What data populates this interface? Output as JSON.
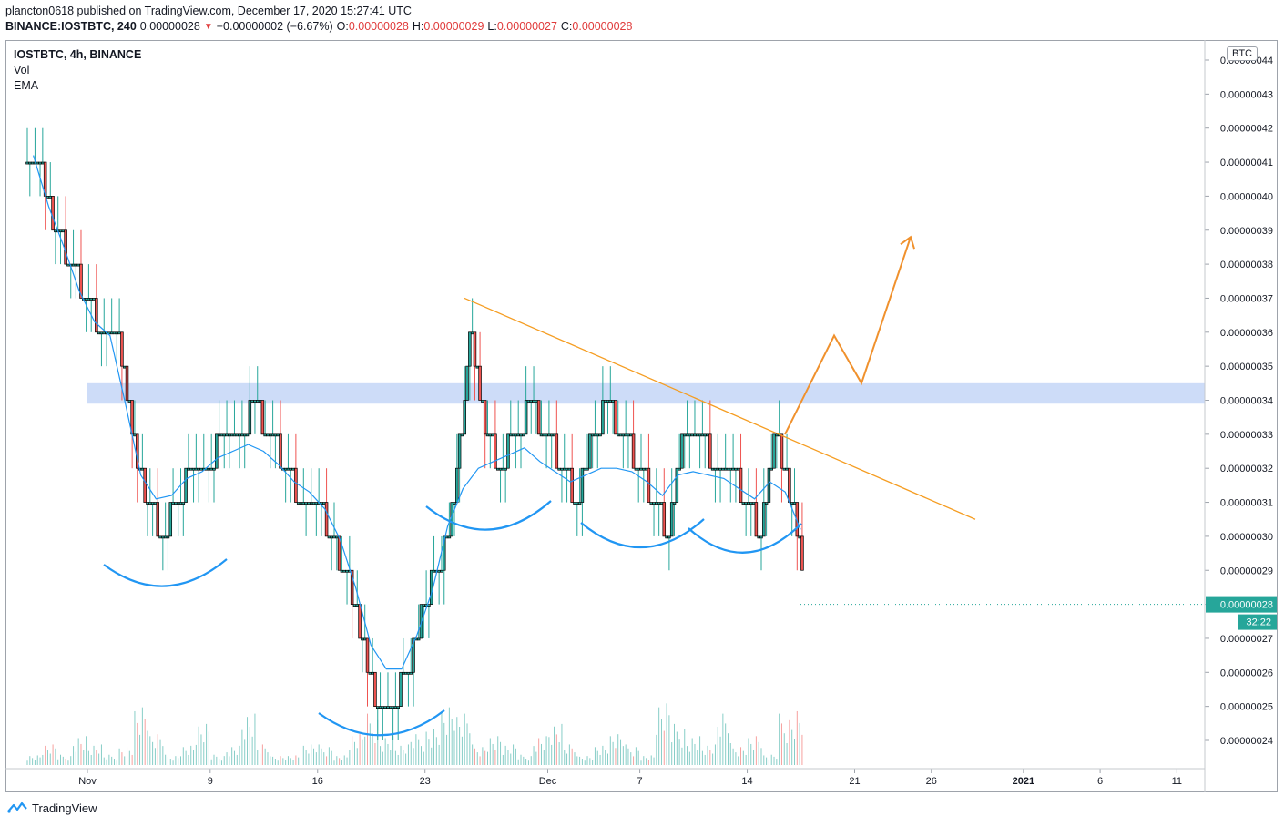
{
  "header": {
    "published_line": "plancton0618 published on TradingView.com, December 17, 2020 15:27:41 UTC",
    "symbol": "BINANCE:IOSTBTC, 240",
    "last": "0.00000028",
    "change_arrow": "▼",
    "change": "−0.00000002 (−6.67%)",
    "o_label": "O:",
    "o_value": "0.00000028",
    "h_label": "H:",
    "h_value": "0.00000029",
    "l_label": "L:",
    "l_value": "0.00000027",
    "c_label": "C:",
    "c_value": "0.00000028"
  },
  "legend": {
    "title": "IOSTBTC, 4h, BINANCE",
    "vol": "Vol",
    "ema": "EMA"
  },
  "currency_tag": "BTC",
  "last_price_label": "0.00000028",
  "countdown_label": "32:22",
  "footer": {
    "brand": "TradingView"
  },
  "colors": {
    "up": "#26a69a",
    "down": "#ef5350",
    "candle": "#000000",
    "ema": "#2196f3",
    "trendline": "#f59d22",
    "projection": "#f0912d",
    "zone": "#c4d6f7",
    "arcs": "#2196f3",
    "last_price": "#26a69a"
  },
  "chart_data": {
    "type": "line",
    "title": "IOSTBTC, 4h, BINANCE",
    "xlabel": "",
    "ylabel": "",
    "x_ticks": [
      "Nov",
      "9",
      "16",
      "23",
      "Dec",
      "7",
      "14",
      "21",
      "26",
      "2021",
      "6",
      "11"
    ],
    "y_ticks": [
      "0.00000044",
      "0.00000043",
      "0.00000042",
      "0.00000041",
      "0.00000040",
      "0.00000039",
      "0.00000038",
      "0.00000037",
      "0.00000036",
      "0.00000035",
      "0.00000034",
      "0.00000033",
      "0.00000032",
      "0.00000031",
      "0.00000030",
      "0.00000029",
      "0.00000028",
      "0.00000027",
      "0.00000026",
      "0.00000025",
      "0.00000024"
    ],
    "ylim": [
      2.36e-07,
      4.445e-07
    ],
    "unit": "BTC",
    "series": [
      {
        "name": "Price",
        "x": [
          "2020-10-28",
          "2020-10-29",
          "2020-10-30",
          "2020-10-31",
          "2020-11-01",
          "2020-11-02",
          "2020-11-03",
          "2020-11-04",
          "2020-11-05",
          "2020-11-06",
          "2020-11-07",
          "2020-11-08",
          "2020-11-09",
          "2020-11-10",
          "2020-11-11",
          "2020-11-12",
          "2020-11-13",
          "2020-11-14",
          "2020-11-15",
          "2020-11-16",
          "2020-11-17",
          "2020-11-18",
          "2020-11-19",
          "2020-11-20",
          "2020-11-21",
          "2020-11-22",
          "2020-11-23",
          "2020-11-24",
          "2020-11-25",
          "2020-11-26",
          "2020-11-27",
          "2020-11-28",
          "2020-11-29",
          "2020-11-30",
          "2020-12-01",
          "2020-12-02",
          "2020-12-03",
          "2020-12-04",
          "2020-12-05",
          "2020-12-06",
          "2020-12-07",
          "2020-12-08",
          "2020-12-09",
          "2020-12-10",
          "2020-12-11",
          "2020-12-12",
          "2020-12-13",
          "2020-12-14",
          "2020-12-15",
          "2020-12-16",
          "2020-12-17"
        ],
        "values": [
          4.1e-07,
          3.9e-07,
          3.8e-07,
          3.7e-07,
          3.6e-07,
          3.6e-07,
          3.3e-07,
          3.1e-07,
          3e-07,
          3.1e-07,
          3.2e-07,
          3.2e-07,
          3.3e-07,
          3.3e-07,
          3.4e-07,
          3.3e-07,
          3.2e-07,
          3.1e-07,
          3.1e-07,
          3e-07,
          2.9e-07,
          2.7e-07,
          2.5e-07,
          2.5e-07,
          2.6e-07,
          2.8e-07,
          2.9e-07,
          3.1e-07,
          3.6e-07,
          3.3e-07,
          3.2e-07,
          3.3e-07,
          3.4e-07,
          3.3e-07,
          3.2e-07,
          3.1e-07,
          3.3e-07,
          3.4e-07,
          3.3e-07,
          3.2e-07,
          3.1e-07,
          3e-07,
          3.3e-07,
          3.3e-07,
          3.2e-07,
          3.2e-07,
          3.1e-07,
          3e-07,
          3.3e-07,
          3.1e-07,
          2.8e-07
        ]
      },
      {
        "name": "EMA",
        "x": [
          "2020-10-28",
          "2020-10-29",
          "2020-10-30",
          "2020-10-31",
          "2020-11-01",
          "2020-11-02",
          "2020-11-03",
          "2020-11-04",
          "2020-11-05",
          "2020-11-06",
          "2020-11-07",
          "2020-11-08",
          "2020-11-09",
          "2020-11-10",
          "2020-11-11",
          "2020-11-12",
          "2020-11-13",
          "2020-11-14",
          "2020-11-15",
          "2020-11-16",
          "2020-11-17",
          "2020-11-18",
          "2020-11-19",
          "2020-11-20",
          "2020-11-21",
          "2020-11-22",
          "2020-11-23",
          "2020-11-24",
          "2020-11-25",
          "2020-11-26",
          "2020-11-27",
          "2020-11-28",
          "2020-11-29",
          "2020-11-30",
          "2020-12-01",
          "2020-12-02",
          "2020-12-03",
          "2020-12-04",
          "2020-12-05",
          "2020-12-06",
          "2020-12-07",
          "2020-12-08",
          "2020-12-09",
          "2020-12-10",
          "2020-12-11",
          "2020-12-12",
          "2020-12-13",
          "2020-12-14",
          "2020-12-15",
          "2020-12-16",
          "2020-12-17"
        ],
        "values": [
          4.12e-07,
          3.97e-07,
          3.85e-07,
          3.72e-07,
          3.63e-07,
          3.59e-07,
          3.39e-07,
          3.18e-07,
          3.11e-07,
          3.12e-07,
          3.17e-07,
          3.19e-07,
          3.23e-07,
          3.25e-07,
          3.27e-07,
          3.25e-07,
          3.21e-07,
          3.16e-07,
          3.13e-07,
          3.08e-07,
          2.99e-07,
          2.85e-07,
          2.68e-07,
          2.61e-07,
          2.61e-07,
          2.71e-07,
          2.84e-07,
          3.03e-07,
          3.14e-07,
          3.2e-07,
          3.22e-07,
          3.24e-07,
          3.26e-07,
          3.22e-07,
          3.19e-07,
          3.16e-07,
          3.18e-07,
          3.2e-07,
          3.2e-07,
          3.19e-07,
          3.16e-07,
          3.12e-07,
          3.18e-07,
          3.19e-07,
          3.18e-07,
          3.17e-07,
          3.14e-07,
          3.11e-07,
          3.16e-07,
          3.13e-07,
          3.02e-07
        ]
      }
    ],
    "volume_relative": [
      0.1,
      0.2,
      0.1,
      0.3,
      0.2,
      0.1,
      0.2,
      0.6,
      0.3,
      0.1,
      0.2,
      0.4,
      0.1,
      0.2,
      0.5,
      0.2,
      0.1,
      0.1,
      0.2,
      0.2,
      0.1,
      0.3,
      0.5,
      0.3,
      0.2,
      0.3,
      0.4,
      0.6,
      0.5,
      0.2,
      0.3,
      0.2,
      0.1,
      0.3,
      0.4,
      0.2,
      0.1,
      0.2,
      0.3,
      0.2,
      0.1,
      0.6,
      0.4,
      0.3,
      0.2,
      0.5,
      0.2,
      0.3,
      0.1,
      0.5,
      0.6
    ],
    "grid": false,
    "legend": "top-left",
    "annotations": {
      "resistance_zone": [
        3.39e-07,
        3.45e-07
      ],
      "descending_trendline": [
        [
          "2020-11-25",
          3.7e-07
        ],
        [
          "2020-12-28",
          3.05e-07
        ]
      ],
      "projection_path": [
        [
          "2020-12-16",
          3.3e-07
        ],
        [
          "2020-12-19",
          3.59e-07
        ],
        [
          "2020-12-21",
          3.45e-07
        ],
        [
          "2020-12-24",
          3.88e-07
        ]
      ],
      "pattern_arcs": 5
    }
  }
}
